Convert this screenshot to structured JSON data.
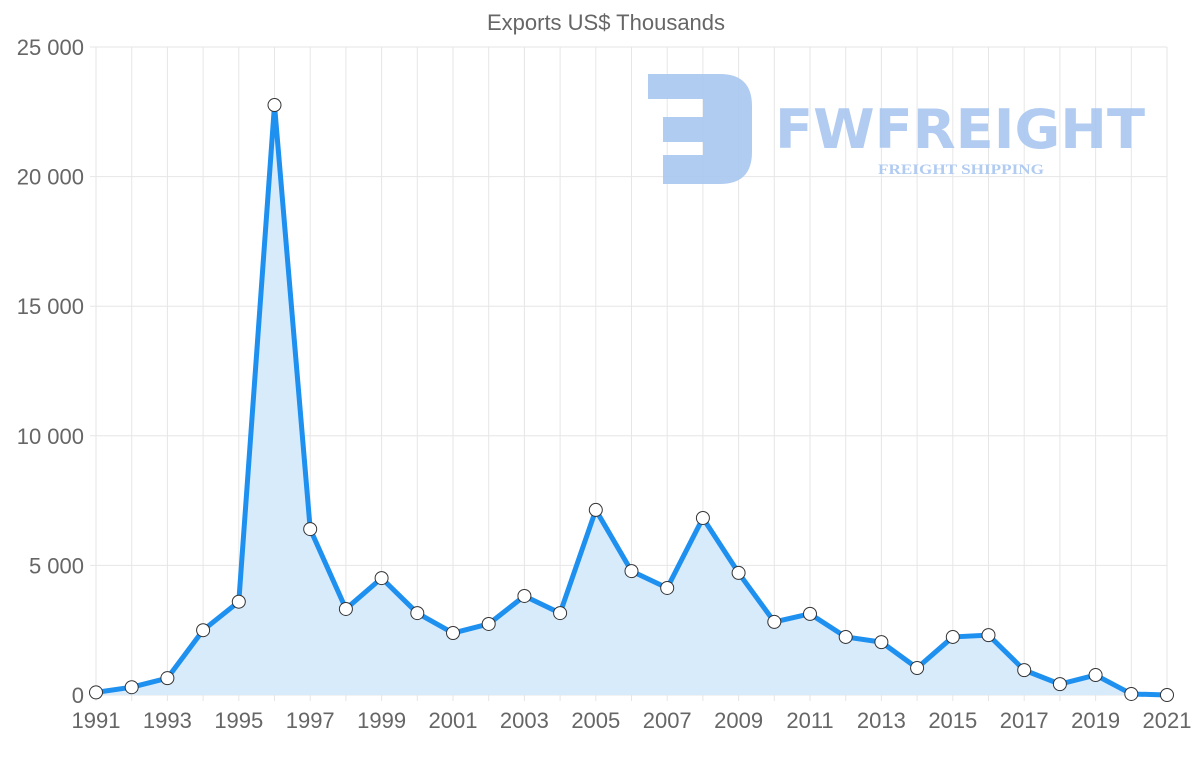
{
  "chart_data": {
    "type": "area",
    "title": "Exports US$ Thousands",
    "xlabel": "",
    "ylabel": "",
    "ylim": [
      0,
      25000
    ],
    "yticks": [
      0,
      5000,
      10000,
      15000,
      20000,
      25000
    ],
    "ytick_labels": [
      "0",
      "5 000",
      "10 000",
      "15 000",
      "20 000",
      "25 000"
    ],
    "x": [
      1991,
      1992,
      1993,
      1994,
      1995,
      1996,
      1997,
      1998,
      1999,
      2000,
      2001,
      2002,
      2003,
      2004,
      2005,
      2006,
      2007,
      2008,
      2009,
      2010,
      2011,
      2012,
      2013,
      2014,
      2015,
      2016,
      2017,
      2018,
      2019,
      2020,
      2021
    ],
    "xtick_labels": [
      "1991",
      "1993",
      "1995",
      "1997",
      "1999",
      "2001",
      "2003",
      "2005",
      "2007",
      "2009",
      "2011",
      "2013",
      "2015",
      "2017",
      "2019",
      "2021"
    ],
    "series": [
      {
        "name": "Exports US$ Thousands",
        "values": [
          100,
          300,
          650,
          2500,
          3600,
          22760,
          6400,
          3320,
          4510,
          3160,
          2390,
          2740,
          3820,
          3160,
          7140,
          4780,
          4130,
          6830,
          4710,
          2820,
          3130,
          2240,
          2040,
          1040,
          2240,
          2310,
          960,
          420,
          770,
          40,
          0
        ]
      }
    ],
    "grid": true,
    "line_color": "#1e90f0",
    "fill_color": "#d8ebfb"
  },
  "watermark": {
    "brand": "FWFREIGHT",
    "tagline": "FREIGHT SHIPPING",
    "color": "#a9c6f0"
  }
}
